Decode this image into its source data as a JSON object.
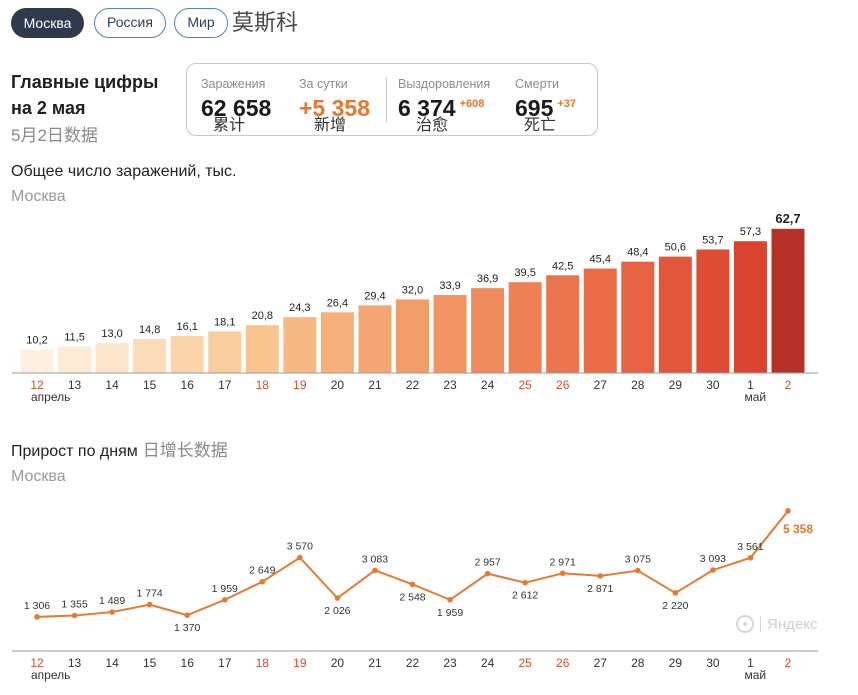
{
  "tabs": [
    {
      "label": "Москва",
      "active": true
    },
    {
      "label": "Россия",
      "active": false
    },
    {
      "label": "Мир",
      "active": false
    }
  ],
  "region_cn": "莫斯科",
  "summary": {
    "title_line1": "Главные цифры",
    "title_line2": "на 2 мая",
    "title_cn": "5月2日数据",
    "stats": [
      {
        "label": "Заражения",
        "value": "62 658",
        "cn": "累计"
      },
      {
        "label": "За сутки",
        "value": "+5 358",
        "cn": "新增"
      },
      {
        "label": "Выздоровления",
        "value": "6 374",
        "delta": "+608",
        "cn": "治愈"
      },
      {
        "label": "Смерти",
        "value": "695",
        "delta": "+37",
        "cn": "死亡"
      }
    ]
  },
  "colors": {
    "active_tab": "#2f3a4c",
    "tab_border": "#5383c6",
    "accent": "#e8762c",
    "weekend": "#d84c2d",
    "line": "#e57a33"
  },
  "chart_data": [
    {
      "type": "bar",
      "title": "Общее число заражений, тыс.",
      "subtitle": "Москва",
      "categories": [
        "12",
        "13",
        "14",
        "15",
        "16",
        "17",
        "18",
        "19",
        "20",
        "21",
        "22",
        "23",
        "24",
        "25",
        "26",
        "27",
        "28",
        "29",
        "30",
        "1",
        "2"
      ],
      "weekend": [
        true,
        false,
        false,
        false,
        false,
        false,
        true,
        true,
        false,
        false,
        false,
        false,
        false,
        true,
        true,
        false,
        false,
        false,
        false,
        false,
        true
      ],
      "month_labels": [
        {
          "category_index": 0,
          "label": "апрель"
        },
        {
          "category_index": 19,
          "label": "май"
        }
      ],
      "values": [
        10.2,
        11.5,
        13.0,
        14.8,
        16.1,
        18.1,
        20.8,
        24.3,
        26.4,
        29.4,
        32.0,
        33.9,
        36.9,
        39.5,
        42.5,
        45.4,
        48.4,
        50.6,
        53.7,
        57.3,
        62.7
      ],
      "value_labels": [
        "10,2",
        "11,5",
        "13,0",
        "14,8",
        "16,1",
        "18,1",
        "20,8",
        "24,3",
        "26,4",
        "29,4",
        "32,0",
        "33,9",
        "36,9",
        "39,5",
        "42,5",
        "45,4",
        "48,4",
        "50,6",
        "53,7",
        "57,3",
        "62,7"
      ],
      "bar_colors": [
        "#fdf0e0",
        "#fdebd6",
        "#fce5c9",
        "#fcdcb6",
        "#fbd5aa",
        "#facd9d",
        "#f9c48f",
        "#f7b983",
        "#f6b07a",
        "#f4a672",
        "#f29c6a",
        "#f19363",
        "#ef8a5c",
        "#ed8055",
        "#eb764e",
        "#e96c47",
        "#e66240",
        "#e2573a",
        "#de4c34",
        "#d9432f",
        "#b73129"
      ],
      "ylim": [
        0,
        65
      ],
      "grid": false,
      "legend": false
    },
    {
      "type": "line",
      "title": "Прирост по дням",
      "title_cn": "日增长数据",
      "subtitle": "Москва",
      "categories": [
        "12",
        "13",
        "14",
        "15",
        "16",
        "17",
        "18",
        "19",
        "20",
        "21",
        "22",
        "23",
        "24",
        "25",
        "26",
        "27",
        "28",
        "29",
        "30",
        "1",
        "2"
      ],
      "weekend": [
        true,
        false,
        false,
        false,
        false,
        false,
        true,
        true,
        false,
        false,
        false,
        false,
        false,
        true,
        true,
        false,
        false,
        false,
        false,
        false,
        true
      ],
      "month_labels": [
        {
          "category_index": 0,
          "label": "апрель"
        },
        {
          "category_index": 19,
          "label": "май"
        }
      ],
      "values": [
        1306,
        1355,
        1489,
        1774,
        1370,
        1959,
        2649,
        3570,
        2026,
        3083,
        2548,
        1959,
        2957,
        2612,
        2971,
        2871,
        3075,
        2220,
        3093,
        3561,
        5358
      ],
      "value_labels": [
        "1 306",
        "1 355",
        "1 489",
        "1 774",
        "1 370",
        "1 959",
        "2 649",
        "3 570",
        "2 026",
        "3 083",
        "2 548",
        "1 959",
        "2 957",
        "2 612",
        "2 971",
        "2 871",
        "3 075",
        "2 220",
        "3 093",
        "3 561",
        "5 358"
      ],
      "line_color": "#e57a33",
      "ylim": [
        0,
        5800
      ],
      "grid": false,
      "legend": false
    }
  ],
  "watermark": "Яндекс"
}
